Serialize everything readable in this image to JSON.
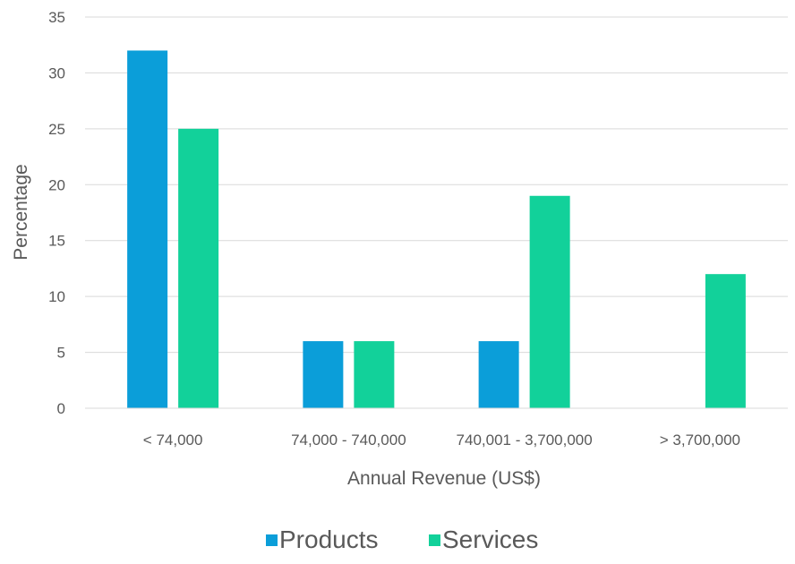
{
  "chart_data": {
    "type": "bar",
    "title": "",
    "xlabel": "Annual Revenue (US$)",
    "ylabel": "Percentage",
    "ylim": [
      0,
      35
    ],
    "yticks": [
      0,
      5,
      10,
      15,
      20,
      25,
      30,
      35
    ],
    "grid": true,
    "legend_position": "bottom",
    "categories": [
      "< 74,000",
      "74,000 - 740,000",
      "740,001 - 3,700,000",
      "> 3,700,000"
    ],
    "series": [
      {
        "name": "Products",
        "color": "#0B9ED9",
        "values": [
          32,
          6,
          6,
          0
        ]
      },
      {
        "name": "Services",
        "color": "#12D19A",
        "values": [
          25,
          6,
          19,
          12
        ]
      }
    ]
  }
}
